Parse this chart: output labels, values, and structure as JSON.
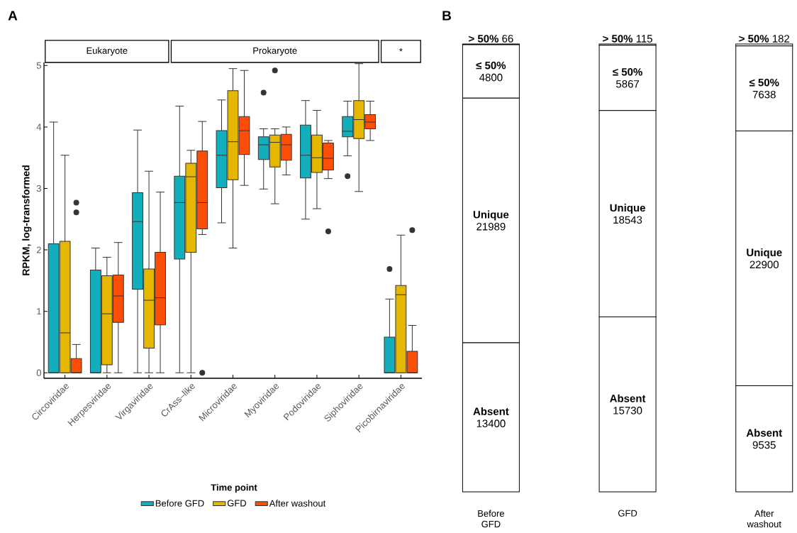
{
  "chart_data": [
    {
      "type": "box",
      "ylabel": "RPKM, log-transformed",
      "legend_title": "Time point",
      "legend": "bottom",
      "annotations": [
        "A",
        "Eukaryote",
        "Prokaryote",
        "*"
      ],
      "categories": [
        "Circoviridae",
        "Herpesviridae",
        "Virgaviridae",
        "CrAss–like",
        "Microviridae",
        "Myoviridae",
        "Podoviridae",
        "Siphoviridae",
        "Picobirnaviridae"
      ],
      "ylim": [
        -0.09,
        5.05
      ],
      "yticks": [
        0,
        1,
        2,
        3,
        4,
        5
      ],
      "series": [
        {
          "name": "Before GFD",
          "color": "#12aebb",
          "boxes": [
            {
              "low": 0,
              "q1": 0,
              "median": 0,
              "q3": 2.1,
              "high": 4.08
            },
            {
              "low": 0,
              "q1": 0,
              "median": 0,
              "q3": 1.67,
              "high": 2.03
            },
            {
              "low": 0,
              "q1": 1.36,
              "median": 2.46,
              "q3": 2.93,
              "high": 3.95
            },
            {
              "low": 0,
              "q1": 1.85,
              "median": 2.77,
              "q3": 3.2,
              "high": 4.34
            },
            {
              "low": 2.44,
              "q1": 3.01,
              "median": 3.54,
              "q3": 3.94,
              "high": 4.44
            },
            {
              "low": 2.99,
              "q1": 3.47,
              "median": 3.71,
              "q3": 3.84,
              "high": 3.97,
              "outliers": [
                4.56
              ]
            },
            {
              "low": 2.5,
              "q1": 3.17,
              "median": 3.54,
              "q3": 4.03,
              "high": 4.43
            },
            {
              "low": 3.53,
              "q1": 3.84,
              "median": 3.93,
              "q3": 4.17,
              "high": 4.42,
              "outliers": [
                3.2
              ]
            },
            {
              "low": 0,
              "q1": 0,
              "median": 0,
              "q3": 0.58,
              "high": 1.2,
              "outliers": [
                1.69
              ]
            }
          ]
        },
        {
          "name": "GFD",
          "color": "#e6b700",
          "boxes": [
            {
              "low": 0,
              "q1": 0,
              "median": 0.65,
              "q3": 2.14,
              "high": 3.54
            },
            {
              "low": 0,
              "q1": 0.13,
              "median": 0.96,
              "q3": 1.58,
              "high": 1.88
            },
            {
              "low": 0,
              "q1": 0.4,
              "median": 1.18,
              "q3": 1.69,
              "high": 3.28
            },
            {
              "low": 0,
              "q1": 1.96,
              "median": 3.19,
              "q3": 3.41,
              "high": 3.62
            },
            {
              "low": 2.03,
              "q1": 3.14,
              "median": 3.76,
              "q3": 4.59,
              "high": 4.95
            },
            {
              "low": 2.75,
              "q1": 3.35,
              "median": 3.75,
              "q3": 3.87,
              "high": 3.97,
              "outliers": [
                4.92
              ]
            },
            {
              "low": 2.67,
              "q1": 3.26,
              "median": 3.5,
              "q3": 3.87,
              "high": 4.27
            },
            {
              "low": 2.95,
              "q1": 3.81,
              "median": 4.12,
              "q3": 4.43,
              "high": 5.03
            },
            {
              "low": 0,
              "q1": 0,
              "median": 1.27,
              "q3": 1.42,
              "high": 2.24
            }
          ]
        },
        {
          "name": "After washout",
          "color": "#fc4e07",
          "boxes": [
            {
              "low": 0,
              "q1": 0,
              "median": 0,
              "q3": 0.23,
              "high": 0.46,
              "outliers": [
                2.61,
                2.77
              ]
            },
            {
              "low": 0,
              "q1": 0.82,
              "median": 1.25,
              "q3": 1.59,
              "high": 2.12
            },
            {
              "low": 0,
              "q1": 0.78,
              "median": 1.22,
              "q3": 1.96,
              "high": 2.94
            },
            {
              "low": 2.25,
              "q1": 2.34,
              "median": 2.77,
              "q3": 3.61,
              "high": 4.09,
              "outliers": [
                0
              ]
            },
            {
              "low": 3.05,
              "q1": 3.55,
              "median": 3.94,
              "q3": 4.17,
              "high": 4.92
            },
            {
              "low": 3.22,
              "q1": 3.46,
              "median": 3.71,
              "q3": 3.88,
              "high": 4.0
            },
            {
              "low": 3.16,
              "q1": 3.3,
              "median": 3.49,
              "q3": 3.74,
              "high": 3.78,
              "outliers": [
                2.3
              ]
            },
            {
              "low": 3.78,
              "q1": 3.97,
              "median": 4.08,
              "q3": 4.2,
              "high": 4.42
            },
            {
              "low": 0,
              "q1": 0,
              "median": 0,
              "q3": 0.35,
              "high": 0.77,
              "outliers": [
                2.32
              ]
            }
          ]
        }
      ]
    },
    {
      "type": "bar",
      "stacked": true,
      "data_labels": true,
      "annotations": [
        "B"
      ],
      "categories": [
        "Before GFD",
        "GFD",
        "After washout"
      ],
      "series": [
        {
          "name": "Absent",
          "color": "#ffffff",
          "values": [
            13400,
            15730,
            9535
          ]
        },
        {
          "name": "Unique",
          "color": "#ffffff",
          "values": [
            21989,
            18543,
            22900
          ]
        },
        {
          "name": "≤ 50%",
          "color": "#ffffff",
          "values": [
            4800,
            5867,
            7638
          ]
        },
        {
          "name": "> 50%",
          "color": "#ffffff",
          "values": [
            66,
            115,
            182
          ]
        }
      ]
    }
  ]
}
